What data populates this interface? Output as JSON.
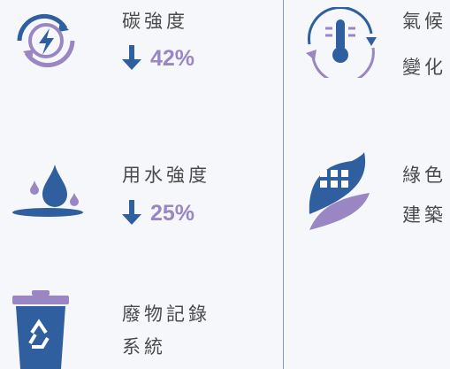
{
  "items": [
    {
      "lines": [
        "碳強度"
      ],
      "change": "42%"
    },
    {
      "lines": [
        "用水強度"
      ],
      "change": "25%"
    },
    {
      "lines": [
        "廢物記錄",
        "系統"
      ]
    },
    {
      "lines": [
        "氣候",
        "變化"
      ]
    },
    {
      "lines": [
        "綠色",
        "建築"
      ]
    }
  ]
}
